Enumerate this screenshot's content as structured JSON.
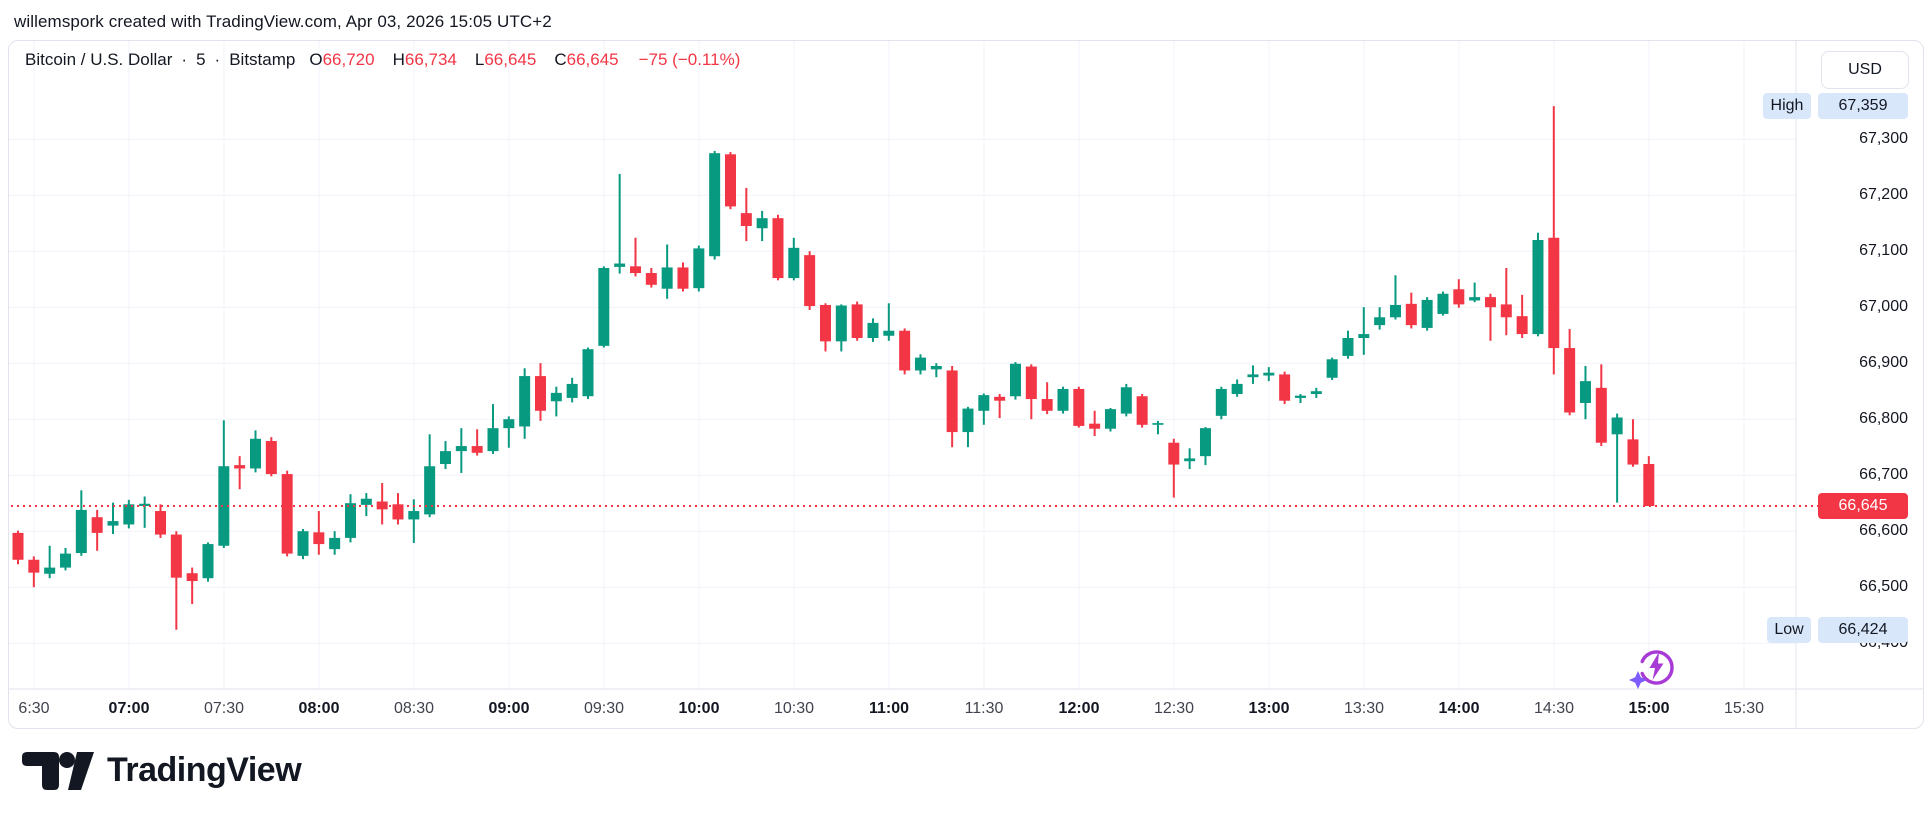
{
  "watermark": "willemspork created with TradingView.com, Apr 03, 2026 15:05 UTC+2",
  "symbol_row": {
    "name": "Bitcoin / U.S. Dollar",
    "separator": "·",
    "interval": "5",
    "exchange": "Bitstamp",
    "o_label": "O",
    "o_value": "66,720",
    "h_label": "H",
    "h_value": "66,734",
    "l_label": "L",
    "l_value": "66,645",
    "c_label": "C",
    "c_value": "66,645",
    "change": "−75 (−0.11%)"
  },
  "price_axis": {
    "currency": "USD",
    "high_label": "High",
    "high_value": "67,359",
    "low_label": "Low",
    "low_value": "66,424",
    "last_price": "66,645",
    "tick_labels": [
      "67,300",
      "67,200",
      "67,100",
      "67,000",
      "66,900",
      "66,800",
      "66,700",
      "66,600",
      "66,500",
      "66,400"
    ]
  },
  "time_axis": {
    "labels": [
      {
        "label": "6:30",
        "bold": false
      },
      {
        "label": "07:00",
        "bold": true
      },
      {
        "label": "07:30",
        "bold": false
      },
      {
        "label": "08:00",
        "bold": true
      },
      {
        "label": "08:30",
        "bold": false
      },
      {
        "label": "09:00",
        "bold": true
      },
      {
        "label": "09:30",
        "bold": false
      },
      {
        "label": "10:00",
        "bold": true
      },
      {
        "label": "10:30",
        "bold": false
      },
      {
        "label": "11:00",
        "bold": true
      },
      {
        "label": "11:30",
        "bold": false
      },
      {
        "label": "12:00",
        "bold": true
      },
      {
        "label": "12:30",
        "bold": false
      },
      {
        "label": "13:00",
        "bold": true
      },
      {
        "label": "13:30",
        "bold": false
      },
      {
        "label": "14:00",
        "bold": true
      },
      {
        "label": "14:30",
        "bold": false
      },
      {
        "label": "15:00",
        "bold": true
      },
      {
        "label": "15:30",
        "bold": false
      }
    ]
  },
  "branding": {
    "logo_text": "TradingView"
  },
  "colors": {
    "up": "#089981",
    "down": "#f23645",
    "grid": "#f0f3fa",
    "axis_border": "#e0e3eb",
    "text": "#131722",
    "marker_bg": "#d9e7fb",
    "last_price_bg": "#f23645",
    "ai_icon_purple": "#a83ad6",
    "ai_icon_sparkle": "#7c5cfa"
  },
  "chart_data": {
    "type": "candlestick",
    "title": "Bitcoin / U.S. Dollar",
    "interval_minutes": 5,
    "exchange": "Bitstamp",
    "currency": "USD",
    "session_high": 67359,
    "session_low": 66424,
    "last_price": 66645,
    "y_ticks": [
      67300,
      67200,
      67100,
      67000,
      66900,
      66800,
      66700,
      66600,
      66500,
      66400
    ],
    "ylim": [
      66380,
      67400
    ],
    "grid": true,
    "candles_format": [
      "time",
      "open",
      "high",
      "low",
      "close"
    ],
    "candles": [
      [
        "06:25",
        66597,
        66601,
        66541,
        66549
      ],
      [
        "06:30",
        66549,
        66555,
        66500,
        66526
      ],
      [
        "06:35",
        66524,
        66574,
        66516,
        66535
      ],
      [
        "06:40",
        66535,
        66570,
        66530,
        66560
      ],
      [
        "06:45",
        66561,
        66673,
        66556,
        66638
      ],
      [
        "06:50",
        66625,
        66638,
        66565,
        66597
      ],
      [
        "06:55",
        66610,
        66651,
        66595,
        66618
      ],
      [
        "07:00",
        66612,
        66656,
        66605,
        66648
      ],
      [
        "07:05",
        66645,
        66662,
        66606,
        66649
      ],
      [
        "07:10",
        66636,
        66648,
        66588,
        66594
      ],
      [
        "07:15",
        66594,
        66600,
        66424,
        66517
      ],
      [
        "07:20",
        66525,
        66535,
        66470,
        66511
      ],
      [
        "07:25",
        66516,
        66580,
        66510,
        66577
      ],
      [
        "07:30",
        66574,
        66798,
        66570,
        66716
      ],
      [
        "07:35",
        66718,
        66734,
        66675,
        66712
      ],
      [
        "07:40",
        66712,
        66780,
        66705,
        66765
      ],
      [
        "07:45",
        66761,
        66768,
        66698,
        66702
      ],
      [
        "07:50",
        66702,
        66708,
        66555,
        66560
      ],
      [
        "07:55",
        66556,
        66604,
        66550,
        66600
      ],
      [
        "08:00",
        66598,
        66636,
        66558,
        66577
      ],
      [
        "08:05",
        66568,
        66600,
        66558,
        66588
      ],
      [
        "08:10",
        66588,
        66666,
        66580,
        66650
      ],
      [
        "08:15",
        66647,
        66668,
        66627,
        66658
      ],
      [
        "08:20",
        66653,
        66686,
        66612,
        66639
      ],
      [
        "08:25",
        66648,
        66668,
        66612,
        66621
      ],
      [
        "08:30",
        66621,
        66657,
        66579,
        66636
      ],
      [
        "08:35",
        66630,
        66773,
        66625,
        66716
      ],
      [
        "08:40",
        66720,
        66761,
        66711,
        66743
      ],
      [
        "08:45",
        66743,
        66784,
        66704,
        66752
      ],
      [
        "08:50",
        66752,
        66782,
        66735,
        66740
      ],
      [
        "08:55",
        66743,
        66827,
        66738,
        66784
      ],
      [
        "09:00",
        66784,
        66805,
        66749,
        66800
      ],
      [
        "09:05",
        66787,
        66891,
        66765,
        66877
      ],
      [
        "09:10",
        66877,
        66900,
        66797,
        66815
      ],
      [
        "09:15",
        66832,
        66858,
        66805,
        66847
      ],
      [
        "09:20",
        66838,
        66874,
        66830,
        66863
      ],
      [
        "09:25",
        66841,
        66928,
        66836,
        66925
      ],
      [
        "09:30",
        66931,
        67073,
        66928,
        67070
      ],
      [
        "09:35",
        67072,
        67238,
        67060,
        67078
      ],
      [
        "09:40",
        67073,
        67124,
        67055,
        67061
      ],
      [
        "09:45",
        67061,
        67070,
        67035,
        67040
      ],
      [
        "09:50",
        67033,
        67112,
        67015,
        67071
      ],
      [
        "09:55",
        67071,
        67080,
        67028,
        67033
      ],
      [
        "10:00",
        67034,
        67110,
        67028,
        67105
      ],
      [
        "10:05",
        67091,
        67279,
        67085,
        67275
      ],
      [
        "10:10",
        67273,
        67277,
        67175,
        67180
      ],
      [
        "10:15",
        67168,
        67213,
        67118,
        67145
      ],
      [
        "10:20",
        67141,
        67172,
        67118,
        67159
      ],
      [
        "10:25",
        67159,
        67165,
        67048,
        67052
      ],
      [
        "10:30",
        67052,
        67124,
        67048,
        67106
      ],
      [
        "10:35",
        67093,
        67100,
        66995,
        67002
      ],
      [
        "10:40",
        67004,
        67007,
        66921,
        66939
      ],
      [
        "10:45",
        66939,
        67005,
        66921,
        67003
      ],
      [
        "10:50",
        67005,
        67010,
        66940,
        66945
      ],
      [
        "10:55",
        66945,
        66980,
        66938,
        66972
      ],
      [
        "11:00",
        66949,
        67007,
        66940,
        66958
      ],
      [
        "11:05",
        66958,
        66962,
        66880,
        66887
      ],
      [
        "11:10",
        66887,
        66916,
        66880,
        66910
      ],
      [
        "11:15",
        66889,
        66900,
        66875,
        66895
      ],
      [
        "11:20",
        66887,
        66895,
        66750,
        66777
      ],
      [
        "11:25",
        66777,
        66822,
        66750,
        66819
      ],
      [
        "11:30",
        66815,
        66846,
        66790,
        66843
      ],
      [
        "11:35",
        66840,
        66845,
        66802,
        66833
      ],
      [
        "11:40",
        66841,
        66902,
        66835,
        66899
      ],
      [
        "11:45",
        66894,
        66898,
        66800,
        66836
      ],
      [
        "11:50",
        66836,
        66866,
        66809,
        66815
      ],
      [
        "11:55",
        66815,
        66858,
        66810,
        66854
      ],
      [
        "12:00",
        66854,
        66858,
        66785,
        66788
      ],
      [
        "12:05",
        66792,
        66815,
        66770,
        66783
      ],
      [
        "12:10",
        66783,
        66820,
        66778,
        66818
      ],
      [
        "12:15",
        66810,
        66863,
        66805,
        66857
      ],
      [
        "12:20",
        66841,
        66845,
        66785,
        66790
      ],
      [
        "12:25",
        66790,
        66797,
        66773,
        66793
      ],
      [
        "12:30",
        66758,
        66765,
        66660,
        66719
      ],
      [
        "12:35",
        66725,
        66748,
        66711,
        66730
      ],
      [
        "12:40",
        66734,
        66786,
        66718,
        66784
      ],
      [
        "12:45",
        66806,
        66858,
        66800,
        66854
      ],
      [
        "12:50",
        66845,
        66871,
        66840,
        66863
      ],
      [
        "12:55",
        66875,
        66896,
        66863,
        66880
      ],
      [
        "13:00",
        66878,
        66893,
        66868,
        66883
      ],
      [
        "13:05",
        66880,
        66885,
        66827,
        66833
      ],
      [
        "13:10",
        66838,
        66845,
        66829,
        66842
      ],
      [
        "13:15",
        66845,
        66856,
        66838,
        66850
      ],
      [
        "13:20",
        66874,
        66910,
        66870,
        66907
      ],
      [
        "13:25",
        66913,
        66958,
        66908,
        66945
      ],
      [
        "13:30",
        66945,
        67000,
        66915,
        66952
      ],
      [
        "13:35",
        66968,
        67000,
        66960,
        66982
      ],
      [
        "13:40",
        66982,
        67057,
        66978,
        67004
      ],
      [
        "13:45",
        67006,
        67026,
        66962,
        66968
      ],
      [
        "13:50",
        66963,
        67018,
        66958,
        67013
      ],
      [
        "13:55",
        66988,
        67028,
        66985,
        67024
      ],
      [
        "14:00",
        67032,
        67050,
        66999,
        67005
      ],
      [
        "14:05",
        67012,
        67044,
        67009,
        67018
      ],
      [
        "14:10",
        67018,
        67024,
        66940,
        67000
      ],
      [
        "14:15",
        67005,
        67070,
        66950,
        66982
      ],
      [
        "14:20",
        66984,
        67022,
        66945,
        66952
      ],
      [
        "14:25",
        66952,
        67133,
        66948,
        67120
      ],
      [
        "14:30",
        67124,
        67359,
        66880,
        66927
      ],
      [
        "14:35",
        66927,
        66961,
        66807,
        66812
      ],
      [
        "14:40",
        66829,
        66895,
        66800,
        66868
      ],
      [
        "14:45",
        66856,
        66898,
        66752,
        66758
      ],
      [
        "14:50",
        66773,
        66810,
        66651,
        66803
      ],
      [
        "14:55",
        66764,
        66800,
        66715,
        66719
      ],
      [
        "15:00",
        66720,
        66734,
        66645,
        66645
      ]
    ]
  }
}
